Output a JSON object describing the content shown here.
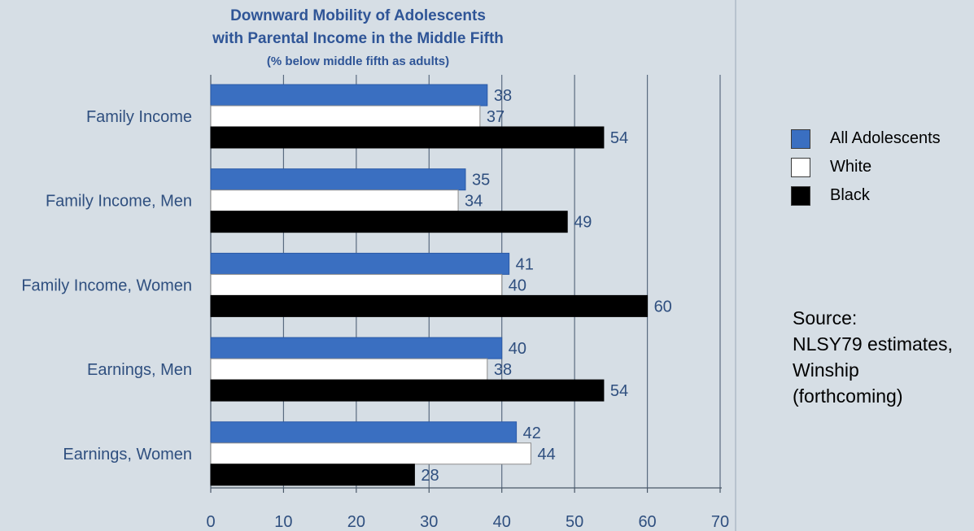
{
  "chart_data": {
    "type": "bar",
    "orientation": "horizontal",
    "title": "Downward Mobility of Adolescents",
    "subtitle": "with Parental Income in the Middle Fifth",
    "note": "(% below middle fifth as adults)",
    "categories": [
      "Family Income",
      "Family Income, Men",
      "Family Income, Women",
      "Earnings, Men",
      "Earnings, Women"
    ],
    "series": [
      {
        "name": "All Adolescents",
        "color": "#3a6fc1",
        "values": [
          38,
          35,
          41,
          40,
          42
        ]
      },
      {
        "name": "White",
        "color": "#ffffff",
        "values": [
          37,
          34,
          40,
          38,
          44
        ]
      },
      {
        "name": "Black",
        "color": "#000000",
        "values": [
          54,
          49,
          60,
          54,
          28
        ]
      }
    ],
    "xlim": [
      0,
      70
    ],
    "xticks": [
      0,
      10,
      20,
      30,
      40,
      50,
      60,
      70
    ],
    "grid": true,
    "legend_position": "right"
  },
  "source": {
    "lines": [
      "Source:",
      "NLSY79 estimates,",
      "Winship",
      "(forthcoming)"
    ]
  },
  "colors": {
    "background": "#d6dee5",
    "title": "#2f5597",
    "label": "#2f4f7f",
    "grid": "#5a6b80"
  }
}
